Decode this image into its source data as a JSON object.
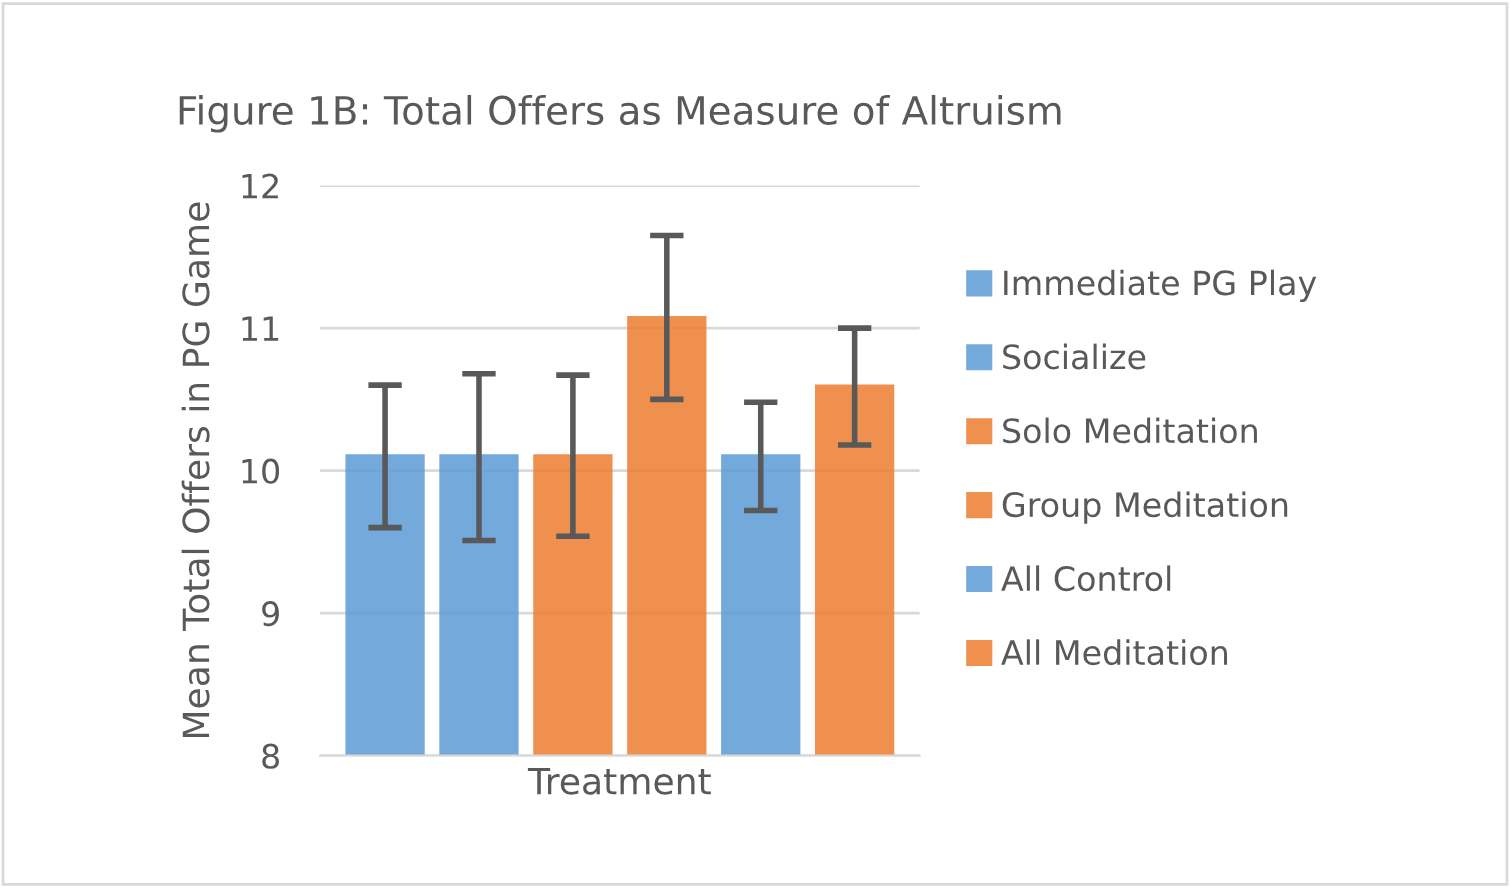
{
  "chart_data": {
    "type": "bar",
    "title": "Figure 1B: Total Offers as Measure of Altruism",
    "xlabel": "Treatment",
    "ylabel": "Mean Total Offers in PG Game",
    "categories": [
      null
    ],
    "series": [
      {
        "name": "Immediate PG Play",
        "color": "#5b9bd5",
        "values": [
          10.1
        ],
        "errors": [
          [
            9.6,
            10.6
          ]
        ]
      },
      {
        "name": "Socialize",
        "color": "#5b9bd5",
        "values": [
          10.1
        ],
        "errors": [
          [
            9.51,
            10.68
          ]
        ]
      },
      {
        "name": "Solo Meditation",
        "color": "#ed7d31",
        "values": [
          10.1
        ],
        "errors": [
          [
            9.54,
            10.67
          ]
        ]
      },
      {
        "name": "Group Meditation",
        "color": "#ed7d31",
        "values": [
          11.07
        ],
        "errors": [
          [
            10.5,
            11.65
          ]
        ]
      },
      {
        "name": "All Control",
        "color": "#5b9bd5",
        "values": [
          10.1
        ],
        "errors": [
          [
            9.72,
            10.48
          ]
        ]
      },
      {
        "name": "All Meditation",
        "color": "#ed7d31",
        "values": [
          10.59
        ],
        "errors": [
          [
            10.18,
            11.0
          ]
        ]
      }
    ],
    "ylim": [
      8,
      12
    ],
    "yticks": [
      8,
      9,
      10,
      11,
      12
    ],
    "grid": "y",
    "legend": "right"
  }
}
